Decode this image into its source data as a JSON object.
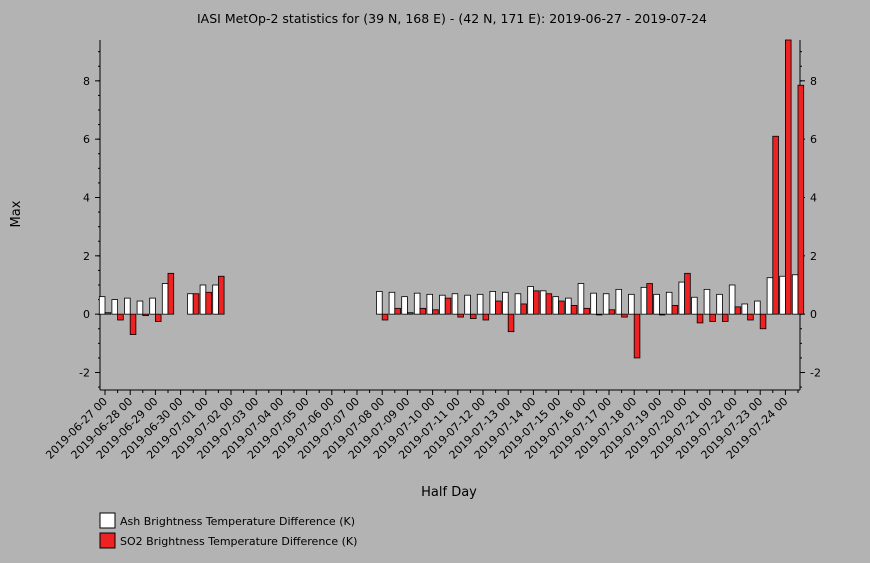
{
  "chart_data": {
    "type": "bar",
    "title": "IASI MetOp-2 statistics for (39 N, 168 E) - (42 N, 171 E): 2019-06-27 - 2019-07-24",
    "xlabel": "Half Day",
    "ylabel": "Max",
    "ylim": [
      -2.6,
      9.4
    ],
    "yticks": [
      -2,
      0,
      2,
      4,
      6,
      8
    ],
    "xtick_labels": [
      "2019-06-27 00",
      "2019-06-28 00",
      "2019-06-29 00",
      "2019-06-30 00",
      "2019-07-01 00",
      "2019-07-02 00",
      "2019-07-03 00",
      "2019-07-04 00",
      "2019-07-05 00",
      "2019-07-06 00",
      "2019-07-07 00",
      "2019-07-08 00",
      "2019-07-09 00",
      "2019-07-10 00",
      "2019-07-11 00",
      "2019-07-12 00",
      "2019-07-13 00",
      "2019-07-14 00",
      "2019-07-15 00",
      "2019-07-16 00",
      "2019-07-17 00",
      "2019-07-18 00",
      "2019-07-19 00",
      "2019-07-20 00",
      "2019-07-21 00",
      "2019-07-22 00",
      "2019-07-23 00",
      "2019-07-24 00"
    ],
    "series": [
      {
        "name": "Ash Brightness Temperature Difference (K)",
        "color": "#ffffff",
        "values": [
          0.6,
          0.5,
          0.55,
          0.45,
          0.55,
          1.05,
          null,
          0.7,
          1.0,
          1.0,
          null,
          null,
          null,
          null,
          null,
          null,
          null,
          null,
          null,
          null,
          null,
          null,
          0.78,
          0.75,
          0.6,
          0.72,
          0.68,
          0.65,
          0.7,
          0.65,
          0.68,
          0.78,
          0.75,
          0.7,
          0.95,
          0.8,
          0.6,
          0.55,
          1.05,
          0.72,
          0.7,
          0.85,
          0.68,
          0.92,
          0.68,
          0.75,
          1.1,
          0.58,
          0.85,
          0.68,
          1.0,
          0.35,
          0.45,
          1.25,
          1.3,
          1.35
        ]
      },
      {
        "name": "SO2 Brightness Temperature Difference (K)",
        "color": "#ee2222",
        "values": [
          0.05,
          -0.2,
          -0.7,
          -0.05,
          -0.25,
          1.4,
          null,
          0.7,
          0.75,
          1.3,
          null,
          null,
          null,
          null,
          null,
          null,
          null,
          null,
          null,
          null,
          null,
          null,
          -0.2,
          0.2,
          0.05,
          0.2,
          0.15,
          0.55,
          -0.1,
          -0.15,
          -0.2,
          0.45,
          -0.6,
          0.35,
          0.8,
          0.7,
          0.45,
          0.3,
          0.2,
          0.0,
          0.15,
          -0.1,
          -1.5,
          1.05,
          -0.02,
          0.3,
          1.4,
          -0.3,
          -0.25,
          -0.25,
          0.25,
          -0.2,
          -0.5,
          6.1,
          9.4,
          7.85
        ]
      }
    ],
    "legend_placement": "bottom-left",
    "grid": false
  }
}
